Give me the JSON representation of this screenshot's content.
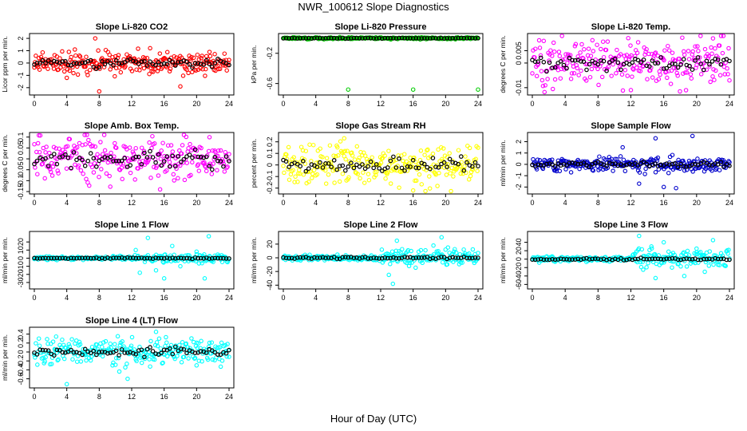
{
  "figure": {
    "title": "NWR_100612  Slope Diagnostics",
    "xlabel": "Hour of Day (UTC)"
  },
  "chart_data": [
    {
      "type": "scatter",
      "title": "Slope Li-820 CO2",
      "ylabel": "Licor ppm per min.",
      "color": "#ff0000",
      "xlim": [
        0,
        24
      ],
      "ylim": [
        -2.4,
        2.2
      ],
      "yticks": [
        -2,
        -1,
        0,
        1,
        2
      ],
      "xticks": [
        0,
        4,
        8,
        12,
        16,
        20,
        24
      ],
      "noise": 0.45,
      "spikes": [
        [
          8,
          -2.3
        ],
        [
          5,
          1.1
        ],
        [
          4,
          -1.2
        ],
        [
          7.5,
          2.0
        ],
        [
          18,
          -1.9
        ]
      ],
      "seed": 11
    },
    {
      "type": "scatter",
      "title": "Slope Li-820 Pressure",
      "ylabel": "kPa per min.",
      "color": "#00cc00",
      "xlim": [
        0,
        24
      ],
      "ylim": [
        -0.72,
        0.03
      ],
      "yticks": [
        -0.2,
        -0.6
      ],
      "xticks": [
        0,
        4,
        8,
        12,
        16,
        20,
        24
      ],
      "noise": 0.006,
      "spikes": [
        [
          8,
          -0.68
        ],
        [
          16,
          -0.68
        ],
        [
          24,
          -0.68
        ]
      ],
      "seed": 3
    },
    {
      "type": "scatter",
      "title": "Slope Li-820 Temp.",
      "ylabel": "degrees C per min.",
      "color": "#ff00ff",
      "xlim": [
        0,
        24
      ],
      "ylim": [
        -0.012,
        0.011
      ],
      "yticks": [
        -0.01,
        0.0,
        0.005
      ],
      "xticks": [
        0,
        4,
        8,
        12,
        16,
        20,
        24
      ],
      "noise": 0.0045,
      "spikes": [
        [
          22,
          0.01
        ],
        [
          12,
          -0.011
        ]
      ],
      "seed": 21
    },
    {
      "type": "scatter",
      "title": "Slope Amb. Box Temp.",
      "ylabel": "degrees C per min.",
      "color": "#ff00ff",
      "xlim": [
        0,
        24
      ],
      "ylim": [
        -0.15,
        0.11
      ],
      "yticks": [
        -0.15,
        -0.1,
        -0.05,
        0.0,
        0.05,
        0.1
      ],
      "xticks": [
        0,
        4,
        8,
        12,
        16,
        20,
        24
      ],
      "noise": 0.05,
      "spikes": [
        [
          15.5,
          -0.14
        ]
      ],
      "seed": 5
    },
    {
      "type": "scatter",
      "title": "Slope Gas Stream RH",
      "ylabel": "percent per min.",
      "color": "#ffff00",
      "xlim": [
        0,
        24
      ],
      "ylim": [
        -0.23,
        0.26
      ],
      "yticks": [
        -0.2,
        -0.1,
        0.0,
        0.1,
        0.2
      ],
      "xticks": [
        0,
        4,
        8,
        12,
        16,
        20,
        24
      ],
      "noise": 0.09,
      "spikes": [
        [
          7.5,
          0.23
        ],
        [
          16,
          -0.22
        ]
      ],
      "seed": 9
    },
    {
      "type": "scatter",
      "title": "Slope Sample Flow",
      "ylabel": "ml/min per min.",
      "color": "#0000cc",
      "xlim": [
        0,
        24
      ],
      "ylim": [
        -2.4,
        2.6
      ],
      "yticks": [
        -2,
        -1,
        0,
        1,
        2
      ],
      "xticks": [
        0,
        4,
        8,
        12,
        16,
        20,
        24
      ],
      "noise": 0.3,
      "spikes": [
        [
          15,
          2.3
        ],
        [
          19.5,
          2.5
        ],
        [
          16,
          -2.0
        ],
        [
          13,
          -1.7
        ],
        [
          17.5,
          -2.1
        ],
        [
          11,
          1.5
        ]
      ],
      "seed": 14
    },
    {
      "type": "scatter",
      "title": "Slope Line 1 Flow",
      "ylabel": "ml/min per min.",
      "color": "#00ffff",
      "xlim": [
        0,
        24
      ],
      "ylim": [
        -35,
        30
      ],
      "yticks": [
        -30,
        -20,
        -10,
        0,
        10,
        20
      ],
      "xticks": [
        0,
        4,
        8,
        12,
        16,
        20,
        24
      ],
      "noise": 1.0,
      "spikes": [
        [
          12.5,
          10
        ],
        [
          13,
          -18
        ],
        [
          14,
          25
        ],
        [
          15,
          -15
        ],
        [
          16,
          -25
        ],
        [
          17,
          15
        ],
        [
          20,
          8
        ],
        [
          21.5,
          27
        ],
        [
          21,
          -25
        ],
        [
          18,
          -10
        ]
      ],
      "seed": 31
    },
    {
      "type": "scatter",
      "title": "Slope Line 2 Flow",
      "ylabel": "ml/min per min.",
      "color": "#00ffff",
      "xlim": [
        0,
        24
      ],
      "ylim": [
        -42,
        35
      ],
      "yticks": [
        -40,
        -20,
        0,
        20
      ],
      "xticks": [
        0,
        4,
        8,
        12,
        16,
        20,
        24
      ],
      "noise": 2.0,
      "spikes": [
        [
          13,
          -25
        ],
        [
          13.5,
          -38
        ],
        [
          14,
          25
        ],
        [
          15.5,
          -12
        ],
        [
          18.5,
          18
        ],
        [
          19.5,
          30
        ],
        [
          20,
          12
        ]
      ],
      "seed": 44
    },
    {
      "type": "scatter",
      "title": "Slope Line 3 Flow",
      "ylabel": "ml/min per min.",
      "color": "#00ffff",
      "xlim": [
        0,
        24
      ],
      "ylim": [
        -65,
        60
      ],
      "yticks": [
        -60,
        -40,
        -20,
        0,
        20,
        40
      ],
      "xticks": [
        0,
        4,
        8,
        12,
        16,
        20,
        24
      ],
      "noise": 3.5,
      "spikes": [
        [
          13,
          55
        ],
        [
          13.5,
          -25
        ],
        [
          14.5,
          30
        ],
        [
          15,
          -45
        ],
        [
          16,
          40
        ],
        [
          17,
          -20
        ],
        [
          18.5,
          -40
        ],
        [
          20,
          25
        ],
        [
          21,
          -30
        ],
        [
          22,
          45
        ]
      ],
      "seed": 52
    },
    {
      "type": "scatter",
      "title": "Slope Line 4 (LT) Flow",
      "ylabel": "ml/min per min.",
      "color": "#00ffff",
      "xlim": [
        0,
        24
      ],
      "ylim": [
        -0.75,
        0.5
      ],
      "yticks": [
        -0.6,
        -0.4,
        -0.2,
        0.0,
        0.2,
        0.4
      ],
      "xticks": [
        0,
        4,
        8,
        12,
        16,
        20,
        24
      ],
      "noise": 0.14,
      "spikes": [
        [
          4,
          -0.72
        ],
        [
          11.5,
          -0.6
        ],
        [
          15,
          0.45
        ],
        [
          20,
          -0.3
        ]
      ],
      "seed": 63
    }
  ]
}
